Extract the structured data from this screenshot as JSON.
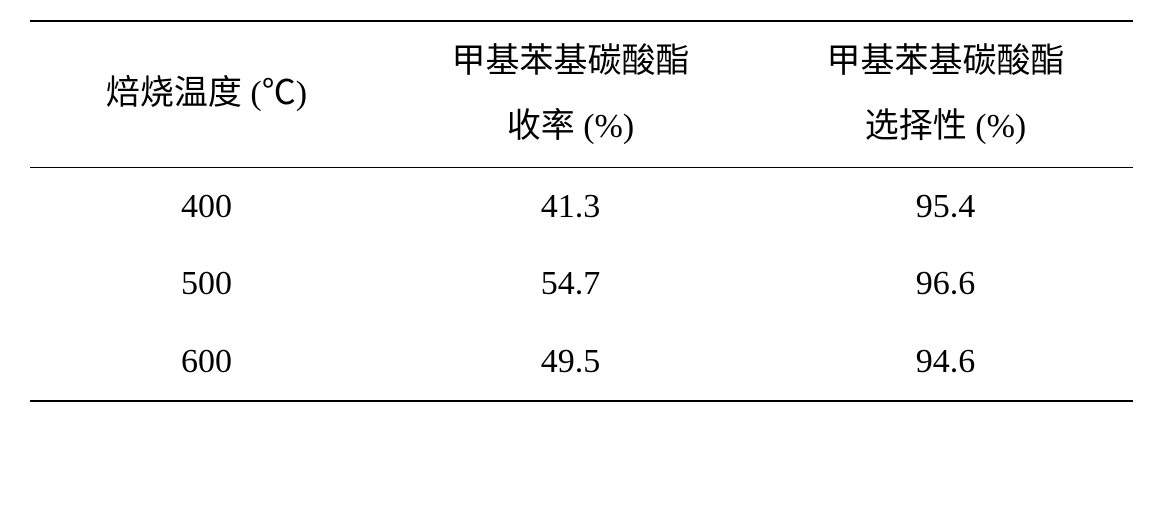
{
  "table": {
    "type": "table",
    "columns": [
      {
        "line1": "焙烧温度 (℃)",
        "line2": ""
      },
      {
        "line1": "甲基苯基碳酸酯",
        "line2": "收率 (%)"
      },
      {
        "line1": "甲基苯基碳酸酯",
        "line2": "选择性 (%)"
      }
    ],
    "rows": [
      {
        "temp": "400",
        "yield": "41.3",
        "selectivity": "95.4"
      },
      {
        "temp": "500",
        "yield": "54.7",
        "selectivity": "96.6"
      },
      {
        "temp": "600",
        "yield": "49.5",
        "selectivity": "94.6"
      }
    ],
    "border_color": "#000000",
    "background_color": "#ffffff",
    "header_fontsize": 34,
    "body_fontsize": 34
  }
}
